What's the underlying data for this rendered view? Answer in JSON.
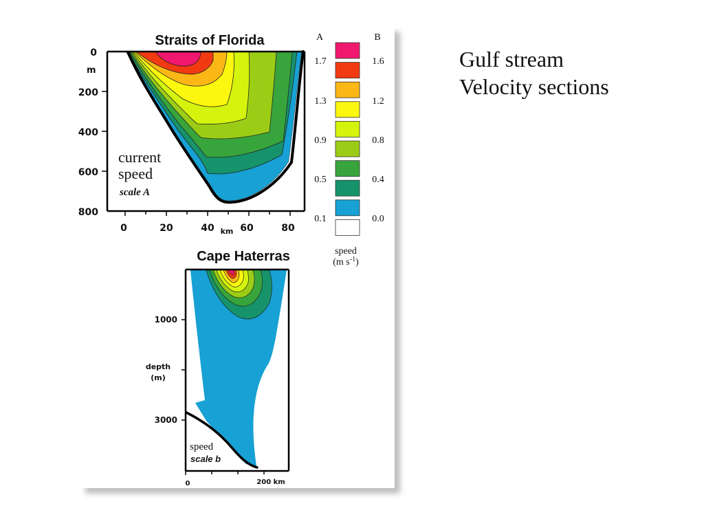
{
  "slide": {
    "title_line1": "Gulf stream",
    "title_line2": "Velocity sections"
  },
  "florida": {
    "title": "Straits of Florida",
    "depth_ticks": [
      "0",
      "200",
      "400",
      "600",
      "800"
    ],
    "depth_unit": "m",
    "distance_ticks": [
      "0",
      "20",
      "40",
      "60",
      "80"
    ],
    "distance_unit": "km",
    "note_line1": "current",
    "note_line2": "speed",
    "note_line3": "scale A"
  },
  "hatteras": {
    "title": "Cape Haterras",
    "depth_ticks": [
      "1000",
      "3000"
    ],
    "depth_label_line1": "depth",
    "depth_label_line2": "(m)",
    "distance_ticks": [
      "0",
      "200 km"
    ],
    "note_line1": "speed",
    "note_line2": "scale b"
  },
  "legend": {
    "header_a": "A",
    "header_b": "B",
    "scale_a": [
      "1.7",
      "1.3",
      "0.9",
      "0.5",
      "0.1"
    ],
    "scale_b": [
      "1.6",
      "1.2",
      "0.8",
      "0.4",
      "0.0"
    ],
    "caption_line1": "speed",
    "caption_line2": "(m s",
    "caption_exp": "-1",
    "caption_close": ")",
    "colors": [
      "#f0186e",
      "#f23a12",
      "#fbb716",
      "#fbf70e",
      "#d4f40d",
      "#9ccd16",
      "#38a53c",
      "#16936a",
      "#17a1d4",
      "#ffffff"
    ]
  }
}
